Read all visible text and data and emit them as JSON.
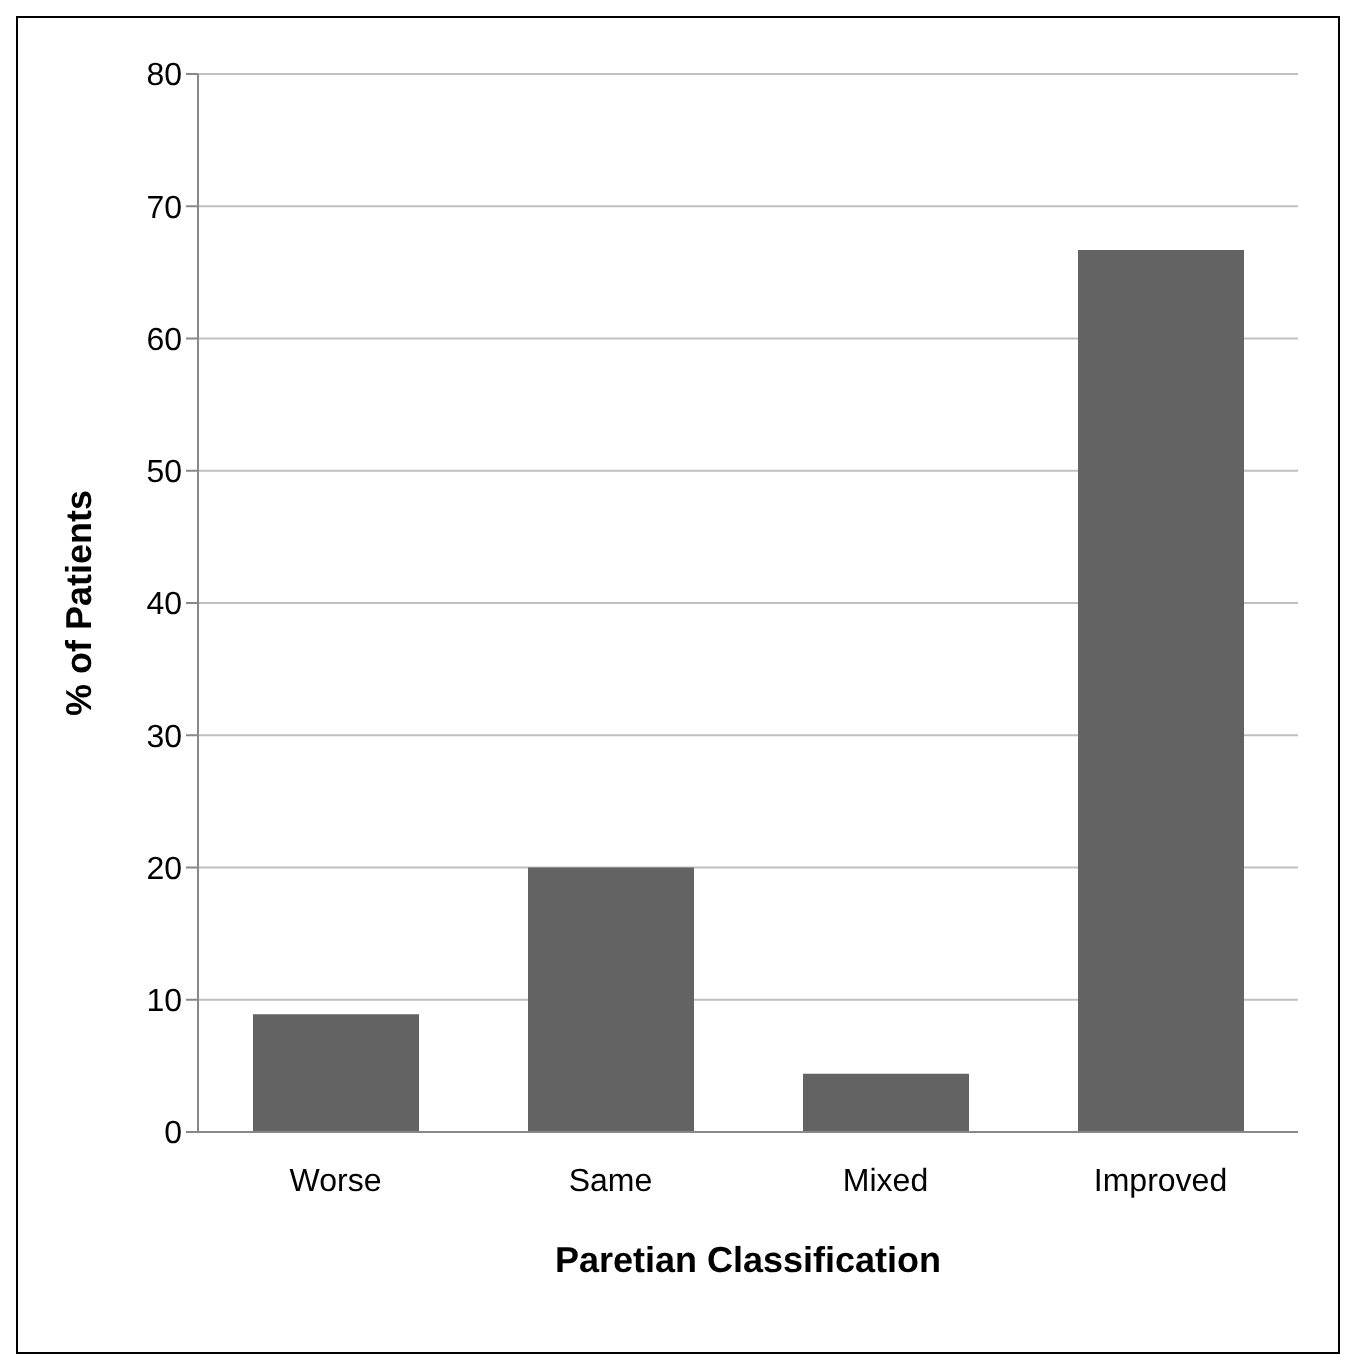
{
  "chart_data": {
    "type": "bar",
    "xlabel": "Paretian Classification",
    "ylabel": "% of Patients",
    "categories": [
      "Worse",
      "Same",
      "Mixed",
      "Improved"
    ],
    "values": [
      8.9,
      20,
      4.4,
      66.7
    ],
    "color": "#636363",
    "ylim": [
      0,
      80
    ],
    "yticks": [
      0,
      10,
      20,
      30,
      40,
      50,
      60,
      70,
      80
    ],
    "grid": "y"
  }
}
